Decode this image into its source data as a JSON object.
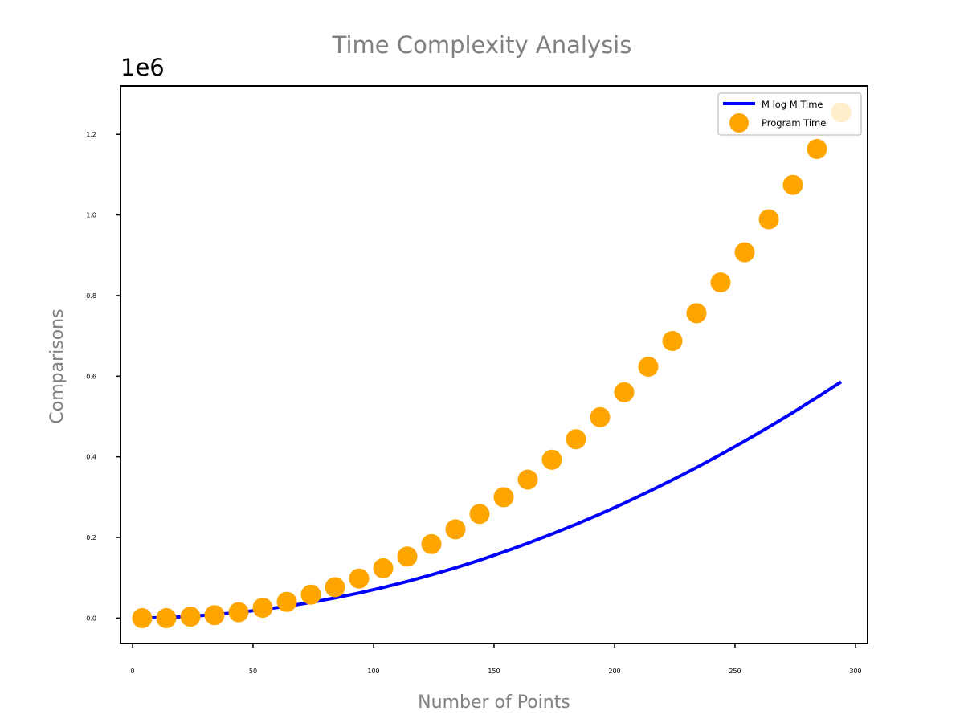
{
  "chart_data": {
    "type": "scatter",
    "title": "Time Complexity Analysis",
    "xlabel": "Number of Points",
    "ylabel": "Comparisons",
    "y_offset_label": "1e6",
    "xlim": [
      -5,
      305
    ],
    "ylim": [
      -0.063,
      1.32
    ],
    "x_ticks": [
      0,
      50,
      100,
      150,
      200,
      250,
      300
    ],
    "x_tick_labels": [
      "0",
      "50",
      "100",
      "150",
      "200",
      "250",
      "300"
    ],
    "y_ticks": [
      0.0,
      0.2,
      0.4,
      0.6,
      0.8,
      1.0,
      1.2
    ],
    "y_tick_labels": [
      "0.0",
      "0.2",
      "0.4",
      "0.6",
      "0.8",
      "1.0",
      "1.2"
    ],
    "grid": false,
    "legend_position": "top-right",
    "series": [
      {
        "name": "M log M Time",
        "kind": "line",
        "color": "#0000ff",
        "x": [
          4,
          14,
          24,
          34,
          44,
          54,
          64,
          74,
          84,
          94,
          104,
          114,
          124,
          134,
          144,
          154,
          164,
          174,
          184,
          194,
          204,
          214,
          224,
          234,
          244,
          254,
          264,
          274,
          284,
          294
        ],
        "y": [
          0.0001,
          0.0015,
          0.0043,
          0.0085,
          0.0141,
          0.021,
          0.0293,
          0.0389,
          0.0499,
          0.0622,
          0.0758,
          0.0908,
          0.1071,
          0.1247,
          0.1436,
          0.1639,
          0.1855,
          0.2084,
          0.2326,
          0.2581,
          0.285,
          0.3132,
          0.3427,
          0.3735,
          0.4056,
          0.439,
          0.4738,
          0.5099,
          0.5473,
          0.5861
        ]
      },
      {
        "name": "Program Time",
        "kind": "scatter",
        "color": "#ffa500",
        "x": [
          4,
          14,
          24,
          34,
          44,
          54,
          64,
          74,
          84,
          94,
          104,
          114,
          124,
          134,
          144,
          154,
          164,
          174,
          184,
          194,
          204,
          214,
          224,
          234,
          244,
          254,
          264,
          274,
          284,
          294
        ],
        "y": [
          0.0,
          0.0,
          0.0036,
          0.0073,
          0.0145,
          0.0255,
          0.0402,
          0.0582,
          0.0764,
          0.0981,
          0.1236,
          0.1527,
          0.1836,
          0.2201,
          0.2582,
          0.2999,
          0.3436,
          0.3927,
          0.4438,
          0.4983,
          0.5601,
          0.6236,
          0.6873,
          0.7563,
          0.8327,
          0.9073,
          0.9891,
          1.0745,
          1.1636,
          1.2545
        ]
      }
    ]
  }
}
